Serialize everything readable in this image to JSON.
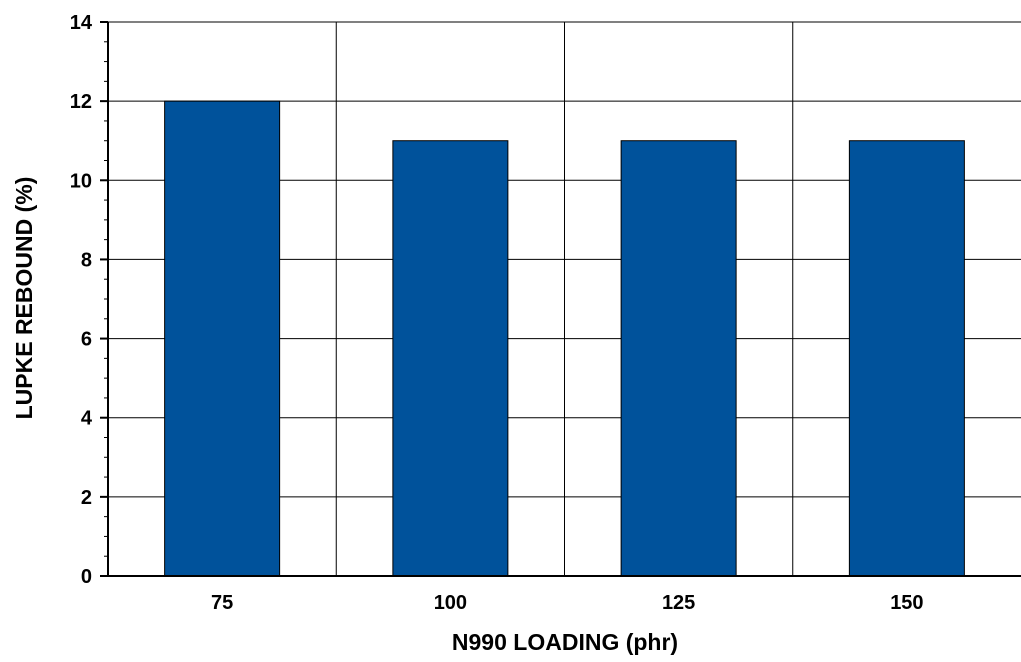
{
  "chart_data": {
    "type": "bar",
    "categories": [
      "75",
      "100",
      "125",
      "150"
    ],
    "series": [
      {
        "values": [
          12,
          11,
          11,
          11
        ]
      }
    ],
    "xlabel": "N990 LOADING (phr)",
    "ylabel": "LUPKE REBOUND (%)",
    "ylim": [
      0,
      14
    ],
    "yticks": [
      0,
      2,
      4,
      6,
      8,
      10,
      12,
      14
    ],
    "grid": true,
    "legend": "none",
    "colors": {
      "bar": "#00529b",
      "grid": "#000000"
    }
  }
}
